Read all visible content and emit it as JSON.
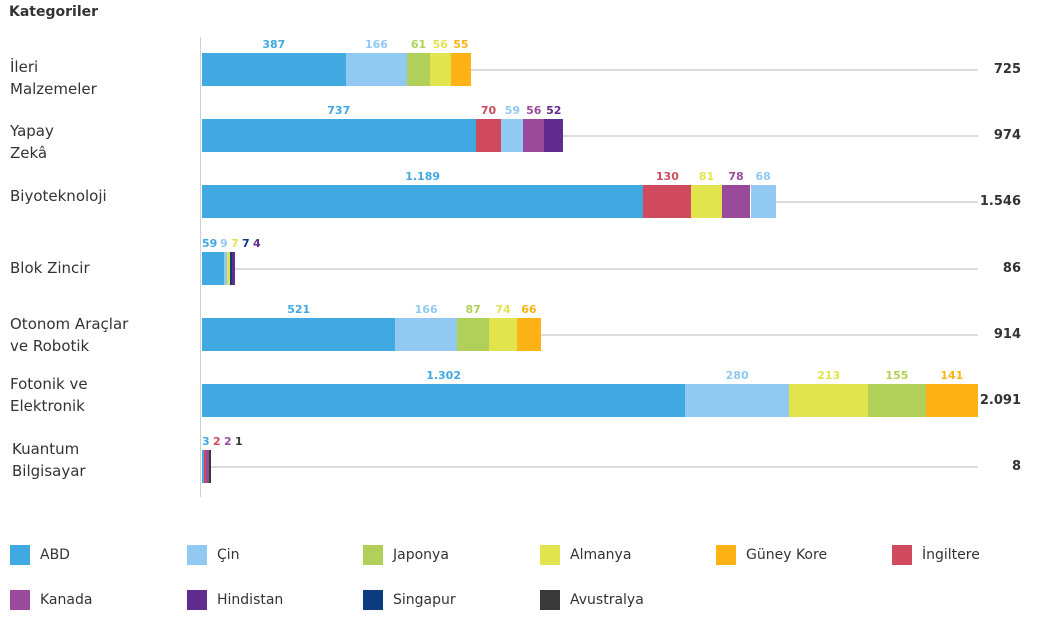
{
  "chart_data": {
    "type": "bar",
    "orientation": "horizontal",
    "stacked": true,
    "title": "Kategoriler",
    "legend_position": "bottom",
    "countries": [
      {
        "name": "ABD",
        "color": "#41a9e1"
      },
      {
        "name": "Çin",
        "color": "#92c9f2"
      },
      {
        "name": "Japonya",
        "color": "#b0d05a"
      },
      {
        "name": "Almanya",
        "color": "#e2e44e"
      },
      {
        "name": "Güney Kore",
        "color": "#fdb315"
      },
      {
        "name": "İngiltere",
        "color": "#cf4a5c"
      },
      {
        "name": "Kanada",
        "color": "#9a4a9a"
      },
      {
        "name": "Hindistan",
        "color": "#612c8f"
      },
      {
        "name": "Singapur",
        "color": "#0b3b80"
      },
      {
        "name": "Avustralya",
        "color": "#3a3a3a"
      }
    ],
    "categories": [
      {
        "label": "İleri\nMalzemeler",
        "total": 725,
        "total_label": "725",
        "segments": [
          {
            "country": "ABD",
            "value": 387,
            "label": "387"
          },
          {
            "country": "Çin",
            "value": 166,
            "label": "166"
          },
          {
            "country": "Japonya",
            "value": 61,
            "label": "61"
          },
          {
            "country": "Almanya",
            "value": 56,
            "label": "56"
          },
          {
            "country": "Güney Kore",
            "value": 55,
            "label": "55"
          }
        ]
      },
      {
        "label": "Yapay\nZekâ",
        "total": 974,
        "total_label": "974",
        "segments": [
          {
            "country": "ABD",
            "value": 737,
            "label": "737"
          },
          {
            "country": "İngiltere",
            "value": 70,
            "label": "70"
          },
          {
            "country": "Çin",
            "value": 59,
            "label": "59"
          },
          {
            "country": "Kanada",
            "value": 56,
            "label": "56"
          },
          {
            "country": "Hindistan",
            "value": 52,
            "label": "52"
          }
        ]
      },
      {
        "label": "Biyoteknoloji",
        "total": 1546,
        "total_label": "1.546",
        "segments": [
          {
            "country": "ABD",
            "value": 1189,
            "label": "1.189"
          },
          {
            "country": "İngiltere",
            "value": 130,
            "label": "130"
          },
          {
            "country": "Almanya",
            "value": 81,
            "label": "81"
          },
          {
            "country": "Kanada",
            "value": 78,
            "label": "78"
          },
          {
            "country": "Çin",
            "value": 68,
            "label": "68"
          }
        ]
      },
      {
        "label": "Blok Zincir",
        "total": 86,
        "total_label": "86",
        "segments": [
          {
            "country": "ABD",
            "value": 59,
            "label": "59"
          },
          {
            "country": "Çin",
            "value": 9,
            "label": "9"
          },
          {
            "country": "Almanya",
            "value": 7,
            "label": "7"
          },
          {
            "country": "Singapur",
            "value": 7,
            "label": "7"
          },
          {
            "country": "Hindistan",
            "value": 4,
            "label": "4"
          }
        ]
      },
      {
        "label": "Otonom Araçlar\nve Robotik",
        "total": 914,
        "total_label": "914",
        "segments": [
          {
            "country": "ABD",
            "value": 521,
            "label": "521"
          },
          {
            "country": "Çin",
            "value": 166,
            "label": "166"
          },
          {
            "country": "Japonya",
            "value": 87,
            "label": "87"
          },
          {
            "country": "Almanya",
            "value": 74,
            "label": "74"
          },
          {
            "country": "Güney Kore",
            "value": 66,
            "label": "66"
          }
        ]
      },
      {
        "label": "Fotonik ve\nElektronik",
        "total": 2091,
        "total_label": "2.091",
        "segments": [
          {
            "country": "ABD",
            "value": 1302,
            "label": "1.302"
          },
          {
            "country": "Çin",
            "value": 280,
            "label": "280"
          },
          {
            "country": "Almanya",
            "value": 213,
            "label": "213"
          },
          {
            "country": "Japonya",
            "value": 155,
            "label": "155"
          },
          {
            "country": "Güney Kore",
            "value": 141,
            "label": "141"
          }
        ]
      },
      {
        "label": "Kuantum\nBilgisayar",
        "total": 8,
        "total_label": "8",
        "segments": [
          {
            "country": "ABD",
            "value": 3,
            "label": "3"
          },
          {
            "country": "İngiltere",
            "value": 2,
            "label": "2"
          },
          {
            "country": "Kanada",
            "value": 2,
            "label": "2"
          },
          {
            "country": "Avustralya",
            "value": 1,
            "label": "1"
          }
        ]
      }
    ],
    "xlim": [
      0,
      2091
    ],
    "grid": false
  }
}
